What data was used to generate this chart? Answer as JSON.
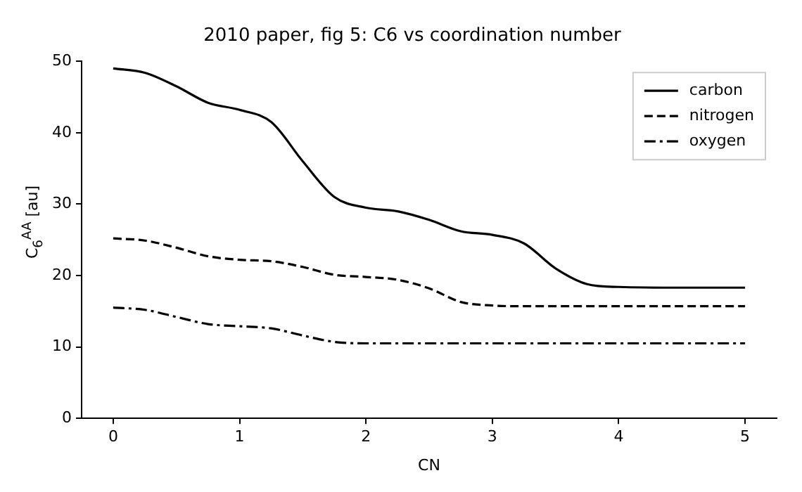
{
  "chart_data": {
    "type": "line",
    "title": "2010 paper, fig 5: C6 vs coordination number",
    "xlabel": "CN",
    "ylabel": "C$_{6}$$^{AA}$ [au]",
    "x": [
      0,
      0.25,
      0.5,
      0.75,
      1,
      1.25,
      1.5,
      1.75,
      2,
      2.25,
      2.5,
      2.75,
      3,
      3.25,
      3.5,
      3.75,
      4,
      4.5,
      5
    ],
    "series": [
      {
        "name": "carbon",
        "color": "#000000",
        "line_style": "solid",
        "values": [
          49,
          48.4,
          46.5,
          44.2,
          43.2,
          41.5,
          36,
          31,
          29.5,
          29,
          27.8,
          26.2,
          25.7,
          24.5,
          21,
          18.8,
          18.4,
          18.3,
          18.3
        ]
      },
      {
        "name": "nitrogen",
        "color": "#000000",
        "line_style": "dashed",
        "values": [
          25.2,
          24.9,
          23.9,
          22.7,
          22.2,
          22,
          21.2,
          20.1,
          19.8,
          19.4,
          18.2,
          16.3,
          15.8,
          15.7,
          15.7,
          15.7,
          15.7,
          15.7,
          15.7
        ]
      },
      {
        "name": "oxygen",
        "color": "#000000",
        "line_style": "dashdot",
        "values": [
          15.5,
          15.2,
          14.2,
          13.2,
          12.9,
          12.6,
          11.6,
          10.7,
          10.5,
          10.5,
          10.5,
          10.5,
          10.5,
          10.5,
          10.5,
          10.5,
          10.5,
          10.5,
          10.5
        ]
      }
    ],
    "xlim": [
      -0.25,
      5.25
    ],
    "xticks": [
      0,
      1,
      2,
      3,
      4,
      5
    ],
    "ylim": [
      0,
      50
    ],
    "yticks": [
      0,
      10,
      20,
      30,
      40,
      50
    ],
    "grid": false,
    "legend": "top right",
    "marker": "none"
  }
}
